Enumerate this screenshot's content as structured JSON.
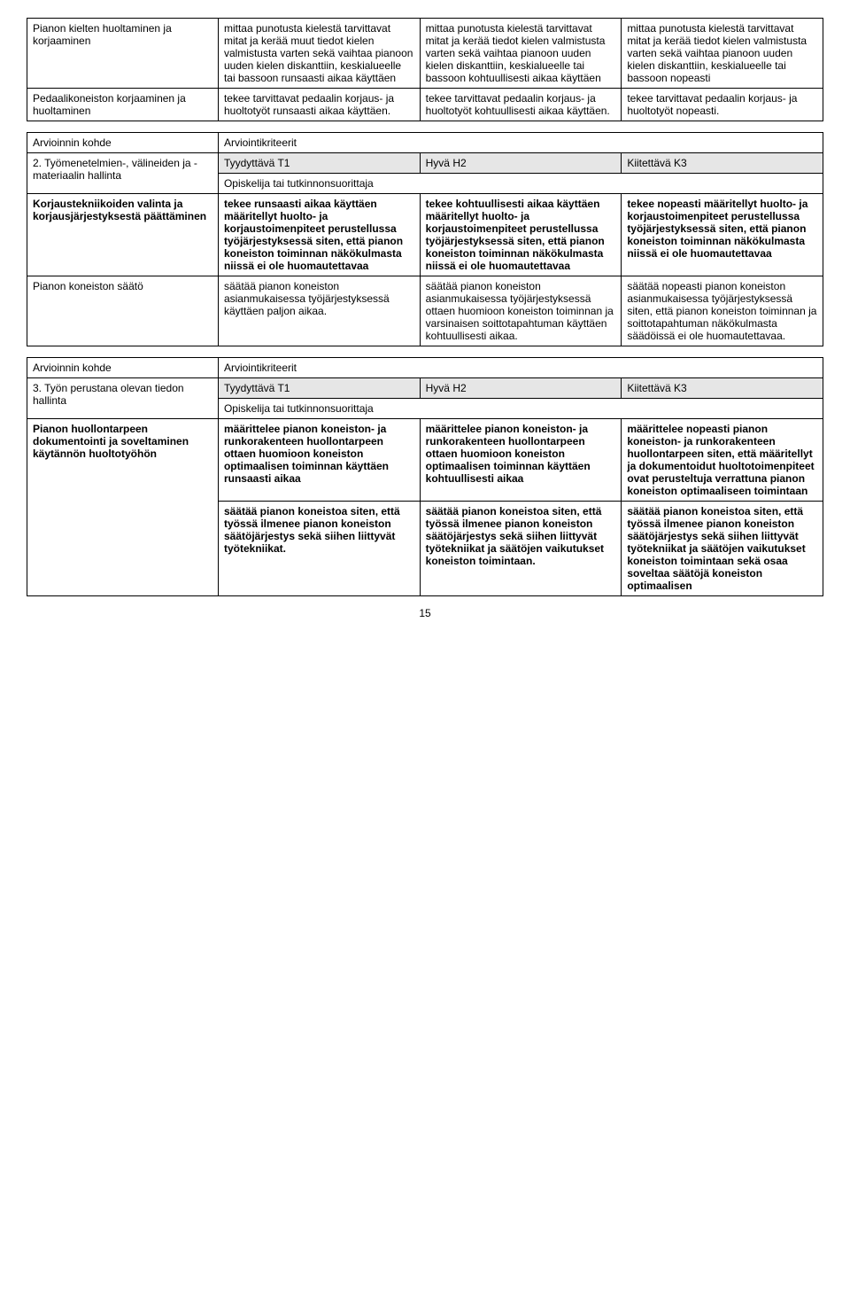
{
  "table1": {
    "rows": [
      {
        "label": "Pianon kielten huoltaminen ja korjaaminen",
        "c1": "mittaa punotusta kielestä tarvittavat mitat ja kerää muut tiedot kielen valmistusta varten sekä vaihtaa pianoon uuden kielen diskanttiin, keskialueelle tai bassoon runsaasti aikaa käyttäen",
        "c2": "mittaa punotusta kielestä tarvittavat mitat ja kerää tiedot kielen valmistusta varten sekä vaihtaa pianoon uuden kielen diskanttiin, keskialueelle tai bassoon kohtuullisesti aikaa käyttäen",
        "c3": "mittaa punotusta kielestä tarvittavat mitat ja kerää tiedot kielen valmistusta varten sekä vaihtaa pianoon uuden kielen diskanttiin, keskialueelle tai bassoon nopeasti"
      },
      {
        "label": "Pedaalikoneiston korjaaminen ja huoltaminen",
        "c1": "tekee tarvittavat pedaalin korjaus- ja huoltotyöt runsaasti aikaa käyttäen.",
        "c2": "tekee tarvittavat pedaalin korjaus- ja huoltotyöt kohtuullisesti  aikaa käyttäen.",
        "c3": "tekee tarvittavat pedaalin korjaus- ja huoltotyöt nopeasti."
      }
    ]
  },
  "table2": {
    "kohde_label": "Arvioinnin kohde",
    "kriteerit_label": "Arviointikriteerit",
    "num_label": "2. Työmenetelmien-, välineiden ja -materiaalin hallinta",
    "t1": "Tyydyttävä T1",
    "h2": "Hyvä H2",
    "k3": "Kiitettävä K3",
    "opiskelija": "Opiskelija tai tutkinnonsuorittaja",
    "rows": [
      {
        "label": "Korjaustekniikoiden valinta ja korjausjärjestyksestä päättäminen",
        "c1": "tekee runsaasti aikaa käyttäen määritellyt huolto- ja korjaustoimenpiteet perustellussa työjärjestyksessä siten, että pianon koneiston toiminnan näkökulmasta niissä ei ole huomautettavaa",
        "c2": "tekee kohtuullisesti aikaa käyttäen määritellyt huolto- ja korjaustoimenpiteet perustellussa työjärjestyksessä siten, että pianon koneiston toiminnan näkökulmasta niissä ei ole huomautettavaa",
        "c3": "tekee nopeasti määritellyt huolto- ja korjaustoimenpiteet perustellussa työjärjestyksessä siten, että pianon koneiston toiminnan näkökulmasta niissä ei ole huomautettavaa"
      },
      {
        "label": "Pianon koneiston säätö",
        "label_bold": false,
        "c1": "säätää pianon koneiston asianmukaisessa työjärjestyksessä käyttäen paljon aikaa.",
        "c2": "säätää pianon koneiston asianmukaisessa työjärjestyksessä ottaen huomioon koneiston toiminnan ja varsinaisen soittotapahtuman käyttäen kohtuullisesti aikaa.",
        "c3": "säätää nopeasti pianon koneiston asianmukaisessa työjärjestyksessä siten, että pianon koneiston toiminnan ja soittotapahtuman näkökulmasta säädöissä ei ole huomautettavaa."
      }
    ]
  },
  "table3": {
    "kohde_label": "Arvioinnin kohde",
    "kriteerit_label": "Arviointikriteerit",
    "num_label": "3. Työn perustana olevan tiedon hallinta",
    "t1": "Tyydyttävä T1",
    "h2": "Hyvä H2",
    "k3": "Kiitettävä K3",
    "opiskelija": "Opiskelija tai tutkinnonsuorittaja",
    "rows": [
      {
        "label": "Pianon huollontarpeen dokumentointi ja soveltaminen käytännön huoltotyöhön",
        "c1": "määrittelee pianon koneiston- ja runkorakenteen huollontarpeen ottaen huomioon koneiston optimaalisen toiminnan käyttäen runsaasti aikaa",
        "c2": "määrittelee pianon koneiston- ja runkorakenteen huollontarpeen ottaen huomioon koneiston optimaalisen toiminnan käyttäen kohtuullisesti aikaa",
        "c3": "määrittelee nopeasti pianon koneiston- ja runkorakenteen huollontarpeen siten, että määritellyt ja dokumentoidut huoltotoimenpiteet ovat perusteltuja verrattuna pianon koneiston optimaaliseen toimintaan"
      },
      {
        "label": "",
        "c1": "säätää pianon koneistoa siten, että työssä ilmenee pianon koneiston säätöjärjestys sekä siihen liittyvät työtekniikat.",
        "c2": "säätää pianon koneistoa siten, että työssä ilmenee pianon koneiston säätöjärjestys sekä siihen liittyvät työtekniikat ja säätöjen vaikutukset koneiston toimintaan.",
        "c3": "säätää pianon koneistoa siten, että työssä ilmenee pianon koneiston säätöjärjestys sekä siihen liittyvät työtekniikat ja säätöjen vaikutukset koneiston toimintaan sekä osaa soveltaa säätöjä koneiston optimaalisen"
      }
    ]
  },
  "page_number": "15"
}
